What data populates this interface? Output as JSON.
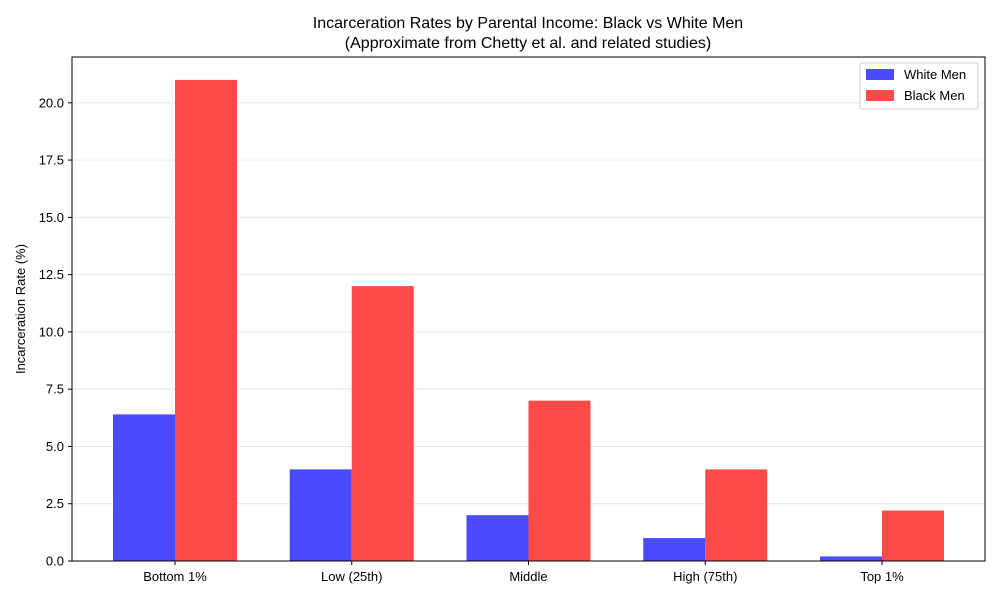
{
  "chart_data": {
    "type": "bar",
    "title": "Incarceration Rates by Parental Income: Black vs White Men",
    "subtitle": "(Approximate from Chetty et al. and related studies)",
    "xlabel": "",
    "ylabel": "Incarceration Rate (%)",
    "categories": [
      "Bottom 1%",
      "Low (25th)",
      "Middle",
      "High (75th)",
      "Top 1%"
    ],
    "series": [
      {
        "name": "White Men",
        "color": "#4a4aff",
        "values": [
          6.4,
          4.0,
          2.0,
          1.0,
          0.2
        ]
      },
      {
        "name": "Black Men",
        "color": "#ff4a4a",
        "values": [
          21.0,
          12.0,
          7.0,
          4.0,
          2.2
        ]
      }
    ],
    "ylim": [
      0,
      22
    ],
    "yticks": [
      0.0,
      2.5,
      5.0,
      7.5,
      10.0,
      12.5,
      15.0,
      17.5,
      20.0
    ],
    "ytick_labels": [
      "0.0",
      "2.5",
      "5.0",
      "7.5",
      "10.0",
      "12.5",
      "15.0",
      "17.5",
      "20.0"
    ],
    "grid": "horizontal",
    "legend_position": "top-right"
  }
}
